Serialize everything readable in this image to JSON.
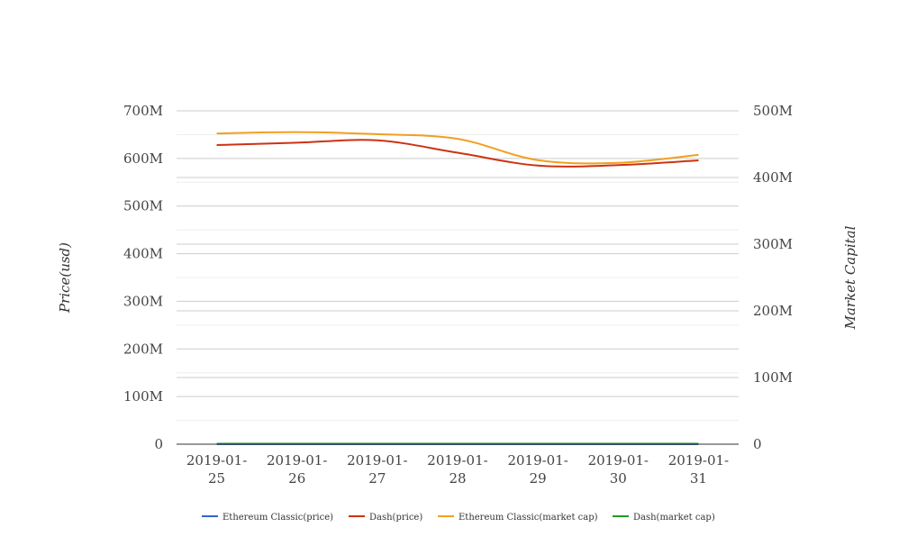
{
  "chart_data": {
    "type": "line",
    "categories": [
      "2019-01-25",
      "2019-01-26",
      "2019-01-27",
      "2019-01-28",
      "2019-01-29",
      "2019-01-30",
      "2019-01-31"
    ],
    "category_lines": [
      [
        "2019-01-",
        "25"
      ],
      [
        "2019-01-",
        "26"
      ],
      [
        "2019-01-",
        "27"
      ],
      [
        "2019-01-",
        "28"
      ],
      [
        "2019-01-",
        "29"
      ],
      [
        "2019-01-",
        "30"
      ],
      [
        "2019-01-",
        "31"
      ]
    ],
    "ylabel": "Price(usd)",
    "y2label": "Market Capital",
    "ylim": [
      0,
      700000000
    ],
    "y2lim": [
      0,
      500000000
    ],
    "yticks": [
      "0",
      "100M",
      "200M",
      "300M",
      "400M",
      "500M",
      "600M",
      "700M"
    ],
    "y2ticks": [
      "0",
      "100M",
      "200M",
      "300M",
      "400M",
      "500M"
    ],
    "grid": true,
    "legend_position": "bottom",
    "series": [
      {
        "name": "Ethereum Classic(price)",
        "axis": "left",
        "color": "#3366cc",
        "values": [
          4.3,
          4.4,
          4.4,
          4.3,
          4.0,
          4.0,
          4.1
        ]
      },
      {
        "name": "Dash(price)",
        "axis": "left",
        "color": "#cc3311",
        "values": [
          628000000,
          633000000,
          638000000,
          612000000,
          585000000,
          586000000,
          596000000
        ]
      },
      {
        "name": "Ethereum Classic(market cap)",
        "axis": "right",
        "color": "#f0a020",
        "values": [
          466000000,
          468000000,
          465000000,
          458000000,
          426000000,
          422000000,
          434000000
        ]
      },
      {
        "name": "Dash(market cap)",
        "axis": "right",
        "color": "#229922",
        "values": [
          650000,
          660000,
          665000,
          640000,
          610000,
          612000,
          620000
        ]
      }
    ]
  }
}
